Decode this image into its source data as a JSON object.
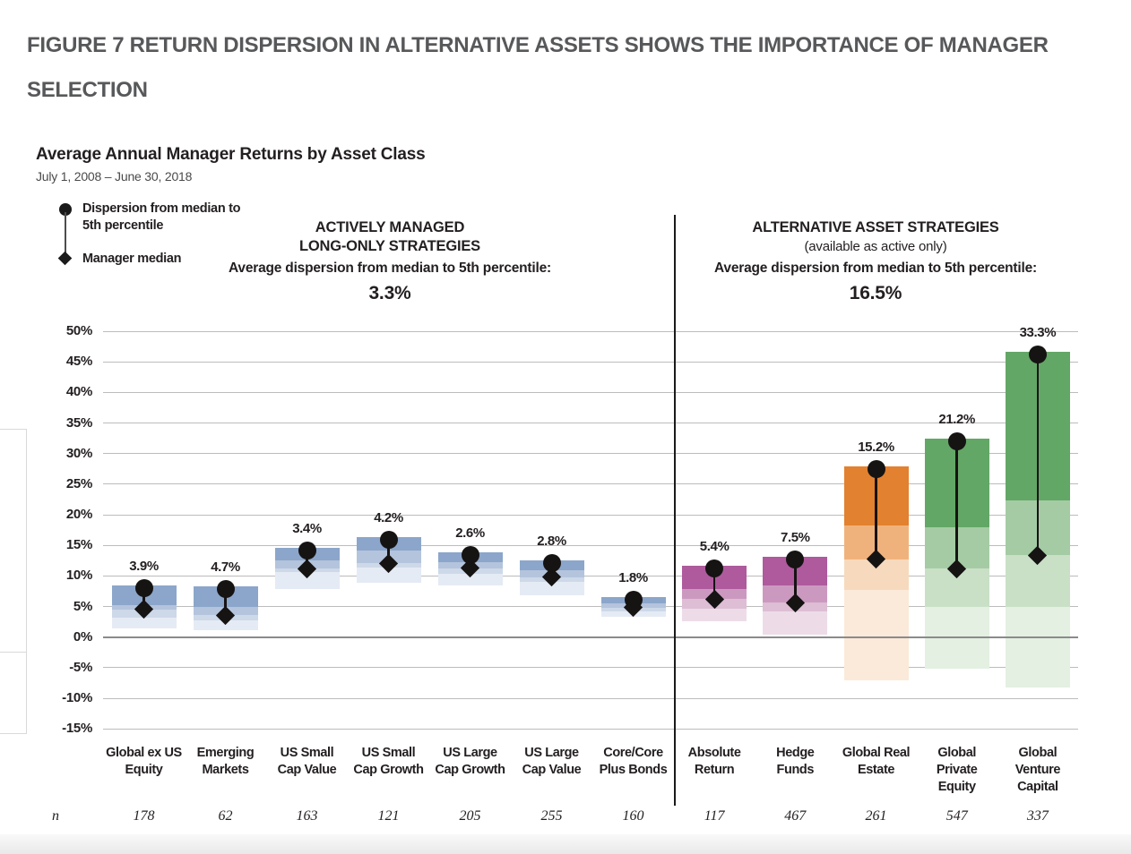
{
  "figure_title": "FIGURE 7 RETURN DISPERSION IN ALTERNATIVE ASSETS SHOWS THE IMPORTANCE OF MANAGER SELECTION",
  "chart_data": {
    "type": "bar",
    "subtype": "floating-percentile-range-bars",
    "title": "Average Annual Manager Returns by Asset Class",
    "subtitle": "July 1, 2008 – June 30, 2018",
    "legend": [
      {
        "marker": "circle",
        "label": "Dispersion from median to 5th percentile"
      },
      {
        "marker": "diamond",
        "label": "Manager median"
      }
    ],
    "n_row_label": "n",
    "ylabel": "",
    "ytick_format": "percent",
    "ylim": [
      -15,
      50
    ],
    "ytick_step": 5,
    "ytick_labels": [
      "50%",
      "45%",
      "40%",
      "35%",
      "30%",
      "25%",
      "20%",
      "15%",
      "10%",
      "5%",
      "0%",
      "-5%",
      "-10%",
      "-15%"
    ],
    "grid": true,
    "legend_position": "top-left",
    "band_meaning_top_to_bottom": [
      "5th to 25th percentile",
      "25th percentile to median",
      "median to 75th percentile",
      "75th to 95th percentile"
    ],
    "marker_color": "#161313",
    "palettes": {
      "blue": [
        "#8ba6ca",
        "#b4c4dc",
        "#cdd8e8",
        "#e5ebf4"
      ],
      "magenta": [
        "#ae5a9d",
        "#cb99c0",
        "#ddbed4",
        "#eddce8"
      ],
      "orange": [
        "#e2812f",
        "#f0b27c",
        "#f7d9bd",
        "#fbead9"
      ],
      "green": [
        "#63a766",
        "#a5cba4",
        "#c9e0c7",
        "#e4f0e2"
      ]
    },
    "sections": [
      {
        "title_lines": [
          "ACTIVELY MANAGED",
          "LONG-ONLY STRATEGIES"
        ],
        "subtitle": "",
        "avg_caption": "Average dispersion from median to 5th percentile:",
        "avg_value": "3.3%"
      },
      {
        "title_lines": [
          "ALTERNATIVE ASSET STRATEGIES"
        ],
        "subtitle": "(available as active only)",
        "avg_caption": "Average dispersion from median to 5th percentile:",
        "avg_value": "16.5%"
      }
    ],
    "categories": [
      {
        "label": "Global ex US Equity",
        "lines": [
          "Global ex US",
          "Equity"
        ],
        "n": 178,
        "section": 0,
        "palette": "blue",
        "dispersion_label": "3.9%",
        "dispersion_pct": 3.9,
        "p5": 8.4,
        "p25": 5.2,
        "median": 4.5,
        "p75": 3.2,
        "p95": 1.4
      },
      {
        "label": "Emerging Markets",
        "lines": [
          "Emerging",
          "Markets"
        ],
        "n": 62,
        "section": 0,
        "palette": "blue",
        "dispersion_label": "4.7%",
        "dispersion_pct": 4.7,
        "p5": 8.3,
        "p25": 5.0,
        "median": 3.6,
        "p75": 2.7,
        "p95": 1.2
      },
      {
        "label": "US Small Cap Value",
        "lines": [
          "US Small",
          "Cap Value"
        ],
        "n": 163,
        "section": 0,
        "palette": "blue",
        "dispersion_label": "3.4%",
        "dispersion_pct": 3.4,
        "p5": 14.6,
        "p25": 12.5,
        "median": 11.2,
        "p75": 10.6,
        "p95": 7.9
      },
      {
        "label": "US Small Cap Growth",
        "lines": [
          "US Small",
          "Cap Growth"
        ],
        "n": 121,
        "section": 0,
        "palette": "blue",
        "dispersion_label": "4.2%",
        "dispersion_pct": 4.2,
        "p5": 16.3,
        "p25": 14.2,
        "median": 12.1,
        "p75": 11.4,
        "p95": 8.9
      },
      {
        "label": "US Large Cap Growth",
        "lines": [
          "US Large",
          "Cap Growth"
        ],
        "n": 205,
        "section": 0,
        "palette": "blue",
        "dispersion_label": "2.6%",
        "dispersion_pct": 2.6,
        "p5": 13.9,
        "p25": 12.3,
        "median": 11.3,
        "p75": 10.4,
        "p95": 8.4
      },
      {
        "label": "US Large Cap Value",
        "lines": [
          "US Large",
          "Cap Value"
        ],
        "n": 255,
        "section": 0,
        "palette": "blue",
        "dispersion_label": "2.8%",
        "dispersion_pct": 2.8,
        "p5": 12.6,
        "p25": 11.0,
        "median": 9.8,
        "p75": 9.0,
        "p95": 6.9
      },
      {
        "label": "Core/Core Plus Bonds",
        "lines": [
          "Core/Core",
          "Plus Bonds"
        ],
        "n": 160,
        "section": 0,
        "palette": "blue",
        "dispersion_label": "1.8%",
        "dispersion_pct": 1.8,
        "p5": 6.6,
        "p25": 5.5,
        "median": 4.8,
        "p75": 4.2,
        "p95": 3.3
      },
      {
        "label": "Absolute Return",
        "lines": [
          "Absolute",
          "Return"
        ],
        "n": 117,
        "section": 1,
        "palette": "magenta",
        "dispersion_label": "5.4%",
        "dispersion_pct": 5.4,
        "p5": 11.6,
        "p25": 7.9,
        "median": 6.2,
        "p75": 4.7,
        "p95": 2.6
      },
      {
        "label": "Hedge Funds",
        "lines": [
          "Hedge",
          "Funds"
        ],
        "n": 467,
        "section": 1,
        "palette": "magenta",
        "dispersion_label": "7.5%",
        "dispersion_pct": 7.5,
        "p5": 13.1,
        "p25": 8.4,
        "median": 5.6,
        "p75": 4.2,
        "p95": 0.4
      },
      {
        "label": "Global Real Estate",
        "lines": [
          "Global Real",
          "Estate"
        ],
        "n": 261,
        "section": 1,
        "palette": "orange",
        "dispersion_label": "15.2%",
        "dispersion_pct": 15.2,
        "p5": 27.9,
        "p25": 18.3,
        "median": 12.7,
        "p75": 7.7,
        "p95": -7.0
      },
      {
        "label": "Global Private Equity",
        "lines": [
          "Global",
          "Private",
          "Equity"
        ],
        "n": 547,
        "section": 1,
        "palette": "green",
        "dispersion_label": "21.2%",
        "dispersion_pct": 21.2,
        "p5": 32.4,
        "p25": 17.9,
        "median": 11.2,
        "p75": 5.0,
        "p95": -5.2
      },
      {
        "label": "Global Venture Capital",
        "lines": [
          "Global",
          "Venture",
          "Capital"
        ],
        "n": 337,
        "section": 1,
        "palette": "green",
        "dispersion_label": "33.3%",
        "dispersion_pct": 33.3,
        "p5": 46.7,
        "p25": 22.3,
        "median": 13.4,
        "p75": 5.0,
        "p95": -8.2
      }
    ]
  }
}
